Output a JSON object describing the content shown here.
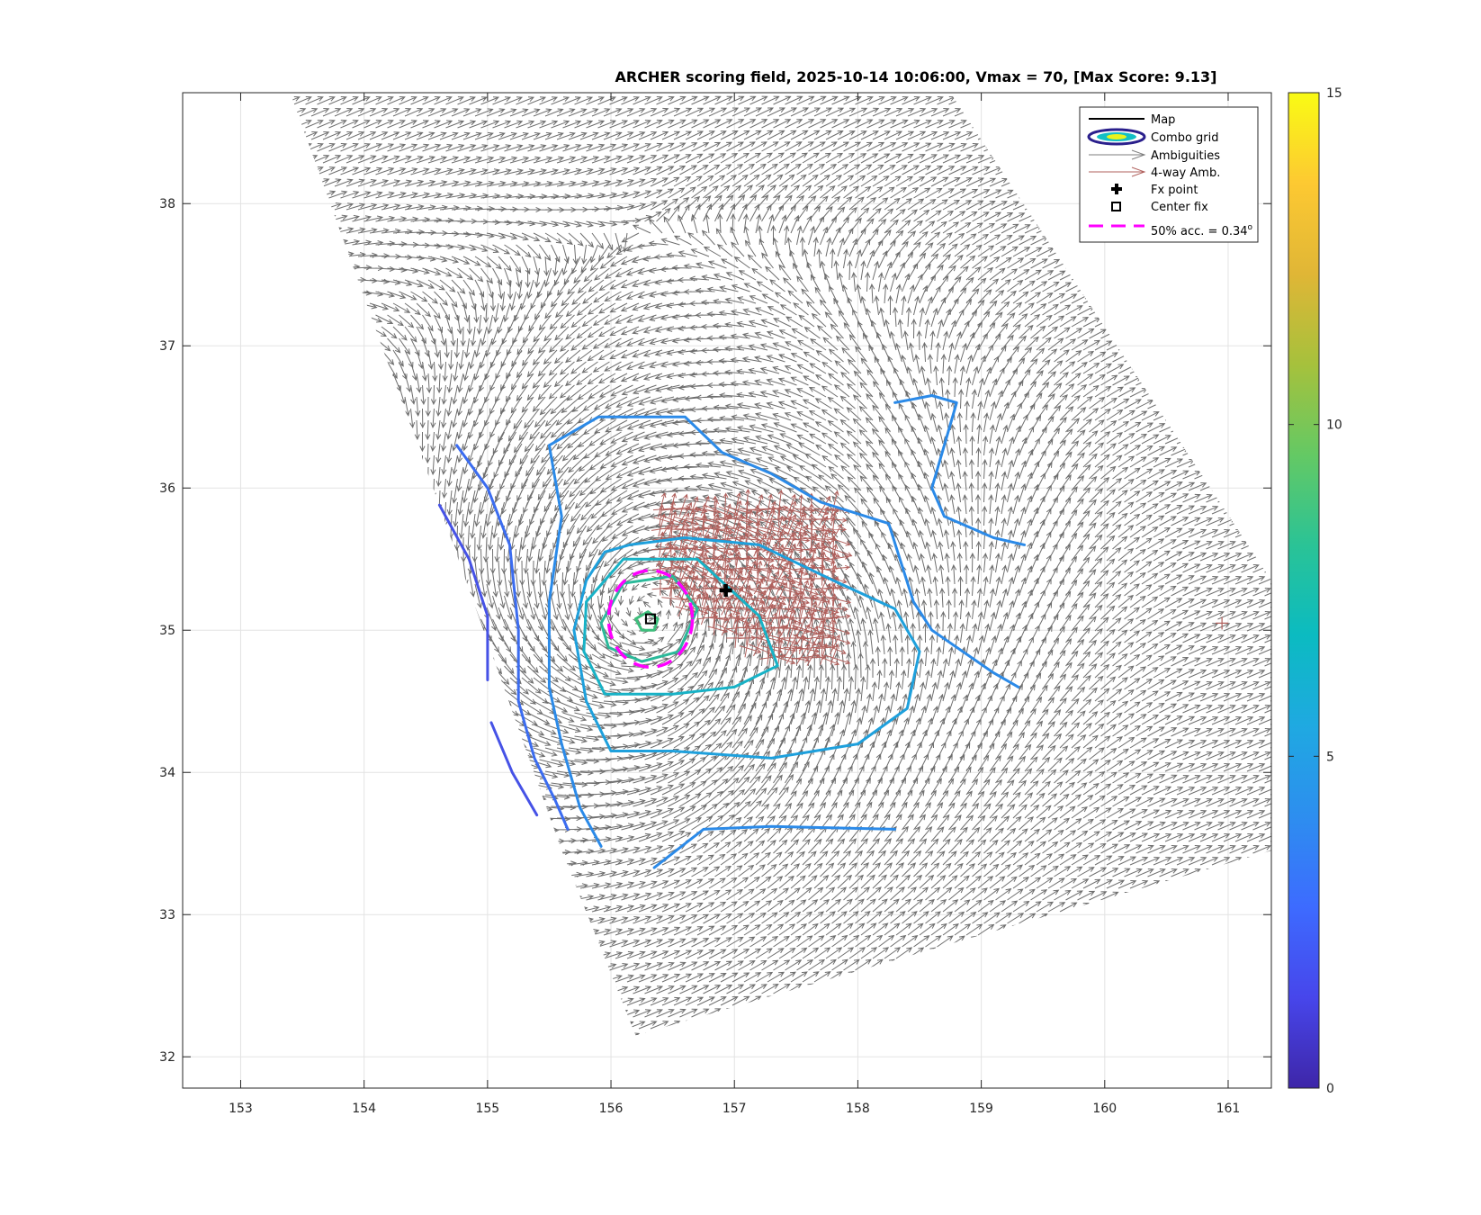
{
  "chart_data": {
    "type": "vector-field",
    "title": "ARCHER scoring field, 2025-10-14 10:06:00, Vmax = 70, [Max Score: 9.13]",
    "xlabel": "",
    "ylabel": "",
    "xlim": [
      152.53,
      161.35
    ],
    "ylim": [
      31.78,
      38.78
    ],
    "xticks": [
      153,
      154,
      155,
      156,
      157,
      158,
      159,
      160,
      161
    ],
    "yticks": [
      32,
      33,
      34,
      35,
      36,
      37,
      38
    ],
    "grid": true,
    "legend_position": "top-right",
    "colorbar": {
      "range": [
        0,
        15
      ],
      "ticks": [
        0,
        5,
        10,
        15
      ],
      "colormap": [
        "#3e26a8",
        "#4746eb",
        "#3d6bff",
        "#2d8eef",
        "#1fa9e1",
        "#0bbbc1",
        "#2ac396",
        "#64c964",
        "#a6c13c",
        "#e0b636",
        "#fdc932",
        "#f9fb14"
      ]
    },
    "legend": [
      {
        "label": "Map",
        "icon": "black-line"
      },
      {
        "label": "Combo grid",
        "icon": "contour-ellipse"
      },
      {
        "label": "Ambiguities",
        "icon": "gray-arrow"
      },
      {
        "label": "4-way Amb.",
        "icon": "red-arrow"
      },
      {
        "label": "Fx point",
        "icon": "plus-marker"
      },
      {
        "label": "Center fix",
        "icon": "square-marker"
      },
      {
        "label": "50% acc. = 0.34",
        "superscript": "o",
        "icon": "magenta-dashed-line"
      }
    ],
    "storm_center": {
      "lon": 156.3,
      "lat": 35.15
    },
    "fx_point": {
      "lon": 156.93,
      "lat": 35.28
    },
    "center_fix": {
      "lon": 156.32,
      "lat": 35.08
    },
    "acc_circle_radius_deg": 0.34,
    "swath_polygon": [
      [
        153.4,
        38.78
      ],
      [
        158.75,
        38.78
      ],
      [
        161.35,
        35.35
      ],
      [
        161.35,
        33.45
      ],
      [
        156.2,
        32.15
      ],
      [
        155.6,
        33.45
      ],
      [
        154.6,
        35.9
      ]
    ],
    "contours": [
      {
        "level": 2.5,
        "color": "#4652e6",
        "points": [
          [
            154.61,
            35.88
          ],
          [
            154.85,
            35.5
          ],
          [
            155.0,
            35.1
          ],
          [
            155.0,
            34.65
          ]
        ]
      },
      {
        "level": 2.5,
        "color": "#4652e6",
        "points": [
          [
            155.03,
            34.35
          ],
          [
            155.2,
            34.0
          ],
          [
            155.4,
            33.7
          ]
        ]
      },
      {
        "level": 3.5,
        "color": "#3b6cf0",
        "points": [
          [
            154.75,
            36.3
          ],
          [
            155.0,
            36.0
          ],
          [
            155.18,
            35.6
          ],
          [
            155.25,
            35.0
          ],
          [
            155.25,
            34.5
          ],
          [
            155.38,
            34.1
          ],
          [
            155.55,
            33.8
          ],
          [
            155.65,
            33.6
          ]
        ]
      },
      {
        "level": 5,
        "color": "#2b8ae8",
        "points": [
          [
            155.5,
            36.3
          ],
          [
            155.6,
            35.8
          ],
          [
            155.5,
            35.2
          ],
          [
            155.5,
            34.6
          ],
          [
            155.6,
            34.2
          ],
          [
            155.75,
            33.75
          ],
          [
            155.92,
            33.48
          ]
        ]
      },
      {
        "level": 5,
        "color": "#2b8ae8",
        "points": [
          [
            155.5,
            36.3
          ],
          [
            155.9,
            36.5
          ],
          [
            156.6,
            36.5
          ],
          [
            156.9,
            36.25
          ],
          [
            157.3,
            36.1
          ],
          [
            157.7,
            35.9
          ],
          [
            158.25,
            35.75
          ],
          [
            158.45,
            35.2
          ],
          [
            158.6,
            35.0
          ],
          [
            159.1,
            34.7
          ],
          [
            159.3,
            34.6
          ]
        ]
      },
      {
        "level": 5,
        "color": "#2b8ae8",
        "points": [
          [
            158.3,
            36.6
          ],
          [
            158.6,
            36.65
          ],
          [
            158.8,
            36.6
          ],
          [
            158.7,
            36.3
          ],
          [
            158.6,
            36.0
          ],
          [
            158.7,
            35.8
          ],
          [
            159.1,
            35.65
          ],
          [
            159.35,
            35.6
          ]
        ]
      },
      {
        "level": 5,
        "color": "#2b8ae8",
        "points": [
          [
            156.35,
            33.33
          ],
          [
            156.75,
            33.6
          ],
          [
            157.3,
            33.62
          ],
          [
            158.3,
            33.6
          ]
        ]
      },
      {
        "level": 6,
        "color": "#1ea0dc",
        "points": [
          [
            155.95,
            35.55
          ],
          [
            156.15,
            35.6
          ],
          [
            156.6,
            35.65
          ],
          [
            157.2,
            35.6
          ],
          [
            157.8,
            35.35
          ],
          [
            158.3,
            35.15
          ],
          [
            158.5,
            34.85
          ],
          [
            158.4,
            34.45
          ],
          [
            158.0,
            34.2
          ],
          [
            157.3,
            34.1
          ],
          [
            156.5,
            34.15
          ],
          [
            156.0,
            34.15
          ],
          [
            155.8,
            34.5
          ],
          [
            155.7,
            35.0
          ],
          [
            155.8,
            35.35
          ],
          [
            155.95,
            35.55
          ]
        ]
      },
      {
        "level": 7,
        "color": "#18b2c6",
        "points": [
          [
            155.78,
            34.85
          ],
          [
            155.8,
            35.2
          ],
          [
            156.1,
            35.5
          ],
          [
            156.7,
            35.5
          ],
          [
            157.2,
            35.1
          ],
          [
            157.35,
            34.75
          ],
          [
            157.0,
            34.6
          ],
          [
            156.5,
            34.55
          ],
          [
            155.95,
            34.55
          ],
          [
            155.78,
            34.85
          ]
        ]
      },
      {
        "level": 8.5,
        "color": "#2bb99a",
        "points": [
          [
            155.92,
            35.05
          ],
          [
            156.1,
            35.33
          ],
          [
            156.5,
            35.38
          ],
          [
            156.7,
            35.15
          ],
          [
            156.55,
            34.85
          ],
          [
            156.25,
            34.78
          ],
          [
            155.98,
            34.88
          ],
          [
            155.92,
            35.05
          ]
        ]
      },
      {
        "level": 9.1,
        "color": "#3ebe7c",
        "points": [
          [
            156.2,
            35.08
          ],
          [
            156.3,
            35.13
          ],
          [
            156.38,
            35.08
          ],
          [
            156.35,
            35.0
          ],
          [
            156.25,
            35.0
          ],
          [
            156.2,
            35.08
          ]
        ]
      }
    ],
    "red_ambiguity_region": {
      "lon_range": [
        156.4,
        157.8
      ],
      "lat_range": [
        34.75,
        35.85
      ],
      "outlier": {
        "lon": 160.95,
        "lat": 35.05
      }
    }
  }
}
